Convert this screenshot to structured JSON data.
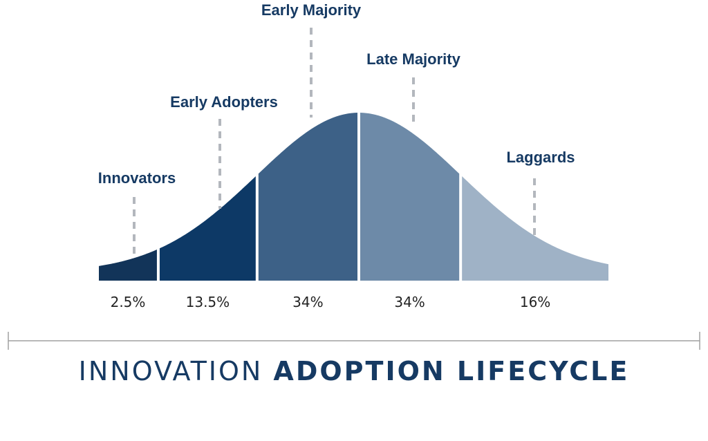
{
  "chart_data": {
    "type": "area",
    "distribution": "normal",
    "segments": [
      {
        "name": "Innovators",
        "value": 2.5,
        "value_label": "2.5%",
        "color": "#123459"
      },
      {
        "name": "Early Adopters",
        "value": 13.5,
        "value_label": "13.5%",
        "color": "#0d3966"
      },
      {
        "name": "Early Majority",
        "value": 34,
        "value_label": "34%",
        "color": "#3d6187"
      },
      {
        "name": "Late Majority",
        "value": 34,
        "value_label": "34%",
        "color": "#6d8aa8"
      },
      {
        "name": "Laggards",
        "value": 16,
        "value_label": "16%",
        "color": "#9fb2c6"
      }
    ]
  },
  "title": {
    "light": "INNOVATION",
    "bold": "ADOPTION LIFECYCLE"
  },
  "colors": {
    "label_text": "#163a63",
    "percent_text": "#222222",
    "leader_line": "#b3b7bd",
    "rule": "#a0a0a0"
  }
}
